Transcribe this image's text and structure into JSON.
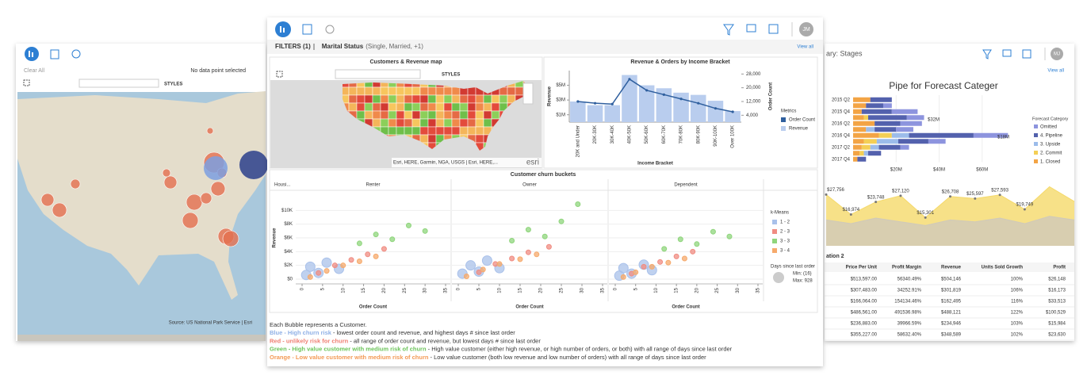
{
  "left_panel": {
    "clear": "Clear All",
    "status": "No data point selected",
    "styles": "STYLES",
    "source": "Source: US National Park Service | Esri"
  },
  "center_panel": {
    "avatar": "JM",
    "filters": "FILTERS (1)",
    "filter_field": "Marital Status",
    "filter_values": "(Single, Married, +1)",
    "view_all": "View all",
    "map_title": "Customers & Revenue map",
    "styles": "STYLES",
    "map_credit": "Esri, HERE, Garmin, NGA, USGS | Esri, HERE,...",
    "esri": "esri",
    "notes": {
      "lead": "Each Bubble represents a Customer.",
      "lines": [
        {
          "label": "Blue - High churn risk",
          "text": " - lowest order count and revenue, and highest days # since last order",
          "color": "#8fb0e6"
        },
        {
          "label": "Red - unlikely risk for churn",
          "text": " - all range of order count and revenue, but lowest days # since last order",
          "color": "#ef7f72"
        },
        {
          "label": "Green - High value customer with medium risk of churn",
          "text": " - High value customer (either high revenue, or high number of orders, or both) with all range of days since last order",
          "color": "#6cc45a"
        },
        {
          "label": "Orange - Low value customer with medium risk of churn",
          "text": " - Low value customer (both low revenue and low number of orders) with all range of days since last order",
          "color": "#f39a55"
        }
      ]
    }
  },
  "chart_data": [
    {
      "type": "bar",
      "title": "Revenue & Orders by Income Bracket",
      "x_label": "Income Bracket",
      "y_label": "Revenue",
      "y2_label": "Order Count",
      "legend_title": "Metrics",
      "categories": [
        "20K and Under",
        "20K-30K",
        "30K-40K",
        "40K-50K",
        "50K-60K",
        "60K-70K",
        "70K-80K",
        "80K-90K",
        "90K-100K",
        "Over 100K"
      ],
      "series": [
        {
          "name": "Order Count",
          "color": "#2f5f9e",
          "type": "line",
          "axis": "y2",
          "values": [
            12000,
            11000,
            10500,
            25000,
            18500,
            16000,
            13500,
            11000,
            8000,
            6000
          ]
        },
        {
          "name": "Revenue",
          "color": "#b9cdee",
          "values": [
            2800000,
            2300000,
            2300000,
            6400000,
            5000000,
            4600000,
            4000000,
            3700000,
            2900000,
            1500000
          ]
        }
      ],
      "ylim": [
        0,
        7000000
      ],
      "yticks": [
        {
          "value": 1000000,
          "label": "$1M"
        },
        {
          "value": 3000000,
          "label": "$3M"
        },
        {
          "value": 5000000,
          "label": "$5M"
        }
      ],
      "y2lim": [
        0,
        30000
      ],
      "y2ticks": [
        {
          "value": 4000,
          "label": "4,000"
        },
        {
          "value": 12000,
          "label": "12,000"
        },
        {
          "value": 20000,
          "label": "20,000"
        },
        {
          "value": 28000,
          "label": "28,000"
        }
      ]
    },
    {
      "type": "scatter",
      "title": "Customer churn buckets",
      "facet_label": "Housi...",
      "x_label": "Order Count",
      "y_label": "Revenue",
      "legend_title": "k-Means",
      "legend": [
        {
          "name": "1 - 2",
          "color": "#a9c1ea"
        },
        {
          "name": "2 - 3",
          "color": "#f08c82"
        },
        {
          "name": "3 - 3",
          "color": "#8fd57c"
        },
        {
          "name": "3 - 4",
          "color": "#f6aa6c"
        }
      ],
      "size_legend": {
        "title": "Days since last order",
        "min": "Min: (16)",
        "max": "Max: 928"
      },
      "xlim": [
        0,
        35
      ],
      "xticks": [
        0,
        5,
        10,
        15,
        20,
        25,
        30,
        35
      ],
      "ylim": [
        0,
        12000
      ],
      "yticks": [
        {
          "value": 0,
          "label": "$0"
        },
        {
          "value": 2000,
          "label": "$2K"
        },
        {
          "value": 4000,
          "label": "$4K"
        },
        {
          "value": 6000,
          "label": "$6K"
        },
        {
          "value": 8000,
          "label": "$8K"
        },
        {
          "value": 10000,
          "label": "$10K"
        }
      ],
      "facets": [
        {
          "name": "Renter",
          "series": [
            {
              "x": [
                1,
                2,
                4,
                6,
                9
              ],
              "values": [
                600,
                1800,
                900,
                2400,
                1500
              ]
            },
            {
              "x": [
                4,
                8,
                12,
                16,
                20
              ],
              "values": [
                900,
                2000,
                2800,
                3600,
                4400
              ]
            },
            {
              "x": [
                14,
                18,
                22,
                26,
                30
              ],
              "values": [
                5200,
                6500,
                5800,
                7800,
                7000
              ]
            },
            {
              "x": [
                2,
                6,
                10,
                14,
                18
              ],
              "values": [
                300,
                1200,
                2000,
                2600,
                3300
              ]
            }
          ]
        },
        {
          "name": "Owner",
          "series": [
            {
              "x": [
                1,
                3,
                5,
                7,
                10
              ],
              "values": [
                800,
                2000,
                1100,
                2700,
                1600
              ]
            },
            {
              "x": [
                5,
                9,
                13,
                17,
                22
              ],
              "values": [
                1000,
                2200,
                3000,
                3900,
                4700
              ]
            },
            {
              "x": [
                13,
                17,
                21,
                25,
                29
              ],
              "values": [
                5600,
                7200,
                6200,
                8400,
                10900
              ]
            },
            {
              "x": [
                2,
                6,
                10,
                15,
                19
              ],
              "values": [
                400,
                1400,
                2200,
                2900,
                3600
              ]
            }
          ]
        },
        {
          "name": "Dependent",
          "series": [
            {
              "x": [
                1,
                2,
                4,
                7,
                9
              ],
              "values": [
                500,
                1600,
                800,
                2100,
                1300
              ]
            },
            {
              "x": [
                4,
                7,
                11,
                15,
                19
              ],
              "values": [
                800,
                1800,
                2500,
                3300,
                4000
              ]
            },
            {
              "x": [
                12,
                16,
                20,
                24,
                28
              ],
              "values": [
                4400,
                5800,
                5100,
                6900,
                6200
              ]
            },
            {
              "x": [
                2,
                5,
                9,
                13,
                17
              ],
              "values": [
                300,
                1000,
                1800,
                2400,
                3000
              ]
            }
          ]
        }
      ]
    },
    {
      "type": "hbar",
      "title": "Pipe for Forecast Categer",
      "legend_title": "Forecast Category",
      "categories": [
        "2015 Q2",
        null,
        "2015 Q4",
        null,
        "2016 Q2",
        null,
        "2016 Q4",
        null,
        "2017 Q2",
        null,
        "2017 Q4"
      ],
      "series": [
        {
          "name": "Omitted",
          "color": "#8d94de",
          "values": [
            0,
            4000000,
            12000000,
            8000000,
            10000000,
            8000000,
            16000000,
            8000000,
            4000000,
            0,
            0
          ]
        },
        {
          "name": "4. Pipeline",
          "color": "#5361ad",
          "values": [
            10000000,
            8000000,
            14000000,
            18000000,
            12000000,
            10000000,
            30000000,
            14000000,
            10000000,
            6000000,
            4000000
          ]
        },
        {
          "name": "3. Upside",
          "color": "#9cbcea",
          "values": [
            0,
            0,
            0,
            0,
            0,
            4000000,
            8000000,
            10000000,
            4000000,
            2000000,
            0
          ]
        },
        {
          "name": "2. Commit",
          "color": "#f4cf55",
          "values": [
            0,
            0,
            0,
            2000000,
            0,
            0,
            6000000,
            6000000,
            4000000,
            2000000,
            0
          ]
        },
        {
          "name": "1. Closed",
          "color": "#f3a445",
          "values": [
            8000000,
            6000000,
            4000000,
            5000000,
            10000000,
            6000000,
            12000000,
            5000000,
            4000000,
            3000000,
            2000000
          ]
        }
      ],
      "xlim": [
        0,
        80000000
      ],
      "xticks": [
        {
          "value": 20000000,
          "label": "$20M"
        },
        {
          "value": 40000000,
          "label": "$40M"
        },
        {
          "value": 60000000,
          "label": "$60M"
        }
      ],
      "annotations": [
        "$32M",
        "$18M"
      ]
    },
    {
      "type": "area",
      "series": [
        {
          "color": "#cfc9ba",
          "values": [
            14000,
            12000,
            15000,
            13000,
            11000,
            14000,
            13000,
            15000,
            12000,
            16000,
            14000
          ]
        },
        {
          "color": "#f5d96a",
          "values": [
            27756,
            16974,
            23748,
            27120,
            15301,
            26708,
            25597,
            27593,
            19749,
            32000,
            24000
          ],
          "value_labels": [
            "$27,756",
            "$16,974",
            "$23,748",
            "$27,120",
            "$15,301",
            "$26,708",
            "$25,597",
            "$27,593",
            "$19,749",
            null,
            null
          ]
        }
      ]
    }
  ],
  "right_panel": {
    "title": "ary: Stages",
    "view_all": "View all",
    "avatar": "MJ",
    "table": {
      "title": "ation 2",
      "columns": [
        "Price Per Unit",
        "Profit Margin",
        "Revenue",
        "Units Sold Growth",
        "Profit"
      ],
      "rows": [
        [
          "$513,597.00",
          "56340.49%",
          "$504,146",
          "100%",
          "$26,148"
        ],
        [
          "$307,483.00",
          "34252.91%",
          "$301,819",
          "106%",
          "$16,173"
        ],
        [
          "$166,064.00",
          "154134.46%",
          "$162,495",
          "116%",
          "$33,513"
        ],
        [
          "$486,561.00",
          "491536.98%",
          "$488,121",
          "122%",
          "$100,529"
        ],
        [
          "$236,883.00",
          "39966.59%",
          "$234,946",
          "103%",
          "$15,984"
        ],
        [
          "$355,227.00",
          "58632.40%",
          "$348,589",
          "102%",
          "$23,630"
        ]
      ]
    }
  }
}
